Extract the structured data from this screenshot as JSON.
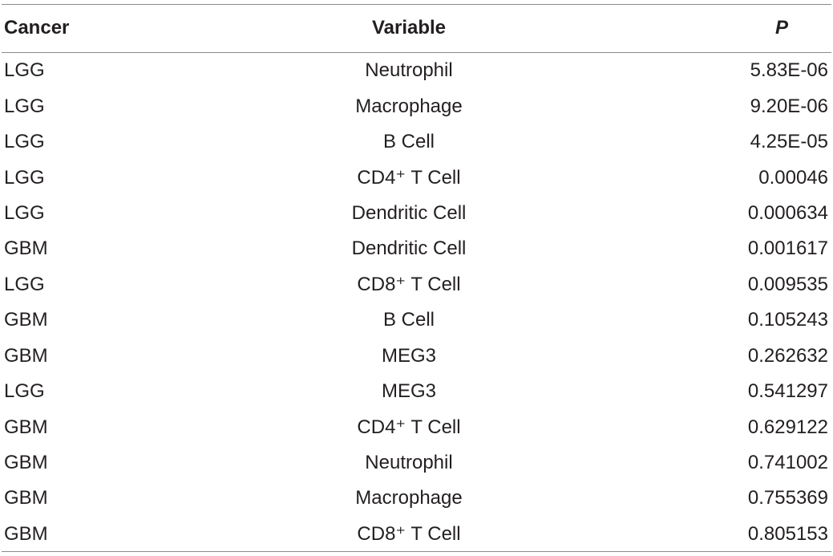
{
  "table": {
    "header": [
      "Cancer",
      "Variable",
      "P"
    ],
    "rows": [
      [
        "LGG",
        "Neutrophil",
        "5.83E-06"
      ],
      [
        "LGG",
        "Macrophage",
        "9.20E-06"
      ],
      [
        "LGG",
        "B Cell",
        "4.25E-05"
      ],
      [
        "LGG",
        "CD4⁺ T Cell",
        "0.00046"
      ],
      [
        "LGG",
        "Dendritic Cell",
        "0.000634"
      ],
      [
        "GBM",
        "Dendritic Cell",
        "0.001617"
      ],
      [
        "LGG",
        "CD8⁺ T Cell",
        "0.009535"
      ],
      [
        "GBM",
        "B Cell",
        "0.105243"
      ],
      [
        "GBM",
        "MEG3",
        "0.262632"
      ],
      [
        "LGG",
        "MEG3",
        "0.541297"
      ],
      [
        "GBM",
        "CD4⁺ T Cell",
        "0.629122"
      ],
      [
        "GBM",
        "Neutrophil",
        "0.741002"
      ],
      [
        "GBM",
        "Macrophage",
        "0.755369"
      ],
      [
        "GBM",
        "CD8⁺ T Cell",
        "0.805153"
      ]
    ]
  }
}
